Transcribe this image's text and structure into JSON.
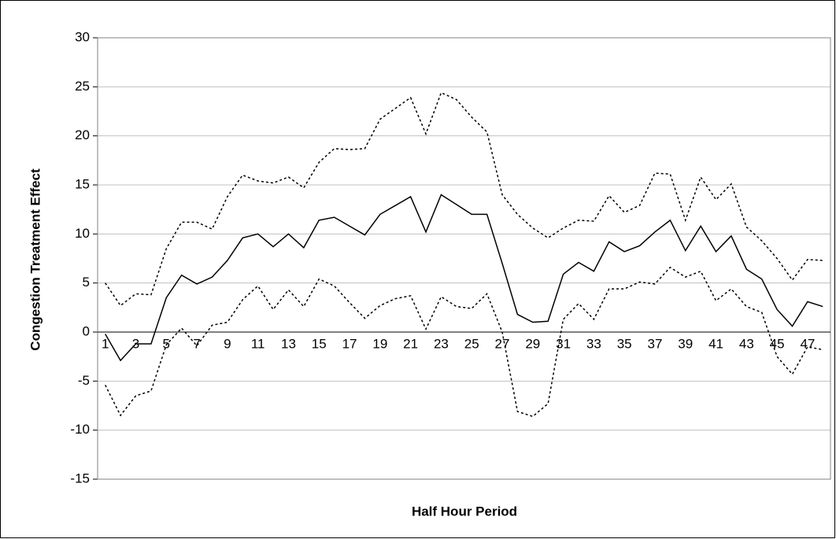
{
  "chart_data": {
    "type": "line",
    "x_label": "Half Hour Period",
    "y_label": "Congestion Treatment Effect",
    "categories": [
      "1",
      null,
      "3",
      null,
      "5",
      null,
      "7",
      null,
      "9",
      null,
      "11",
      null,
      "13",
      null,
      "15",
      null,
      "17",
      null,
      "19",
      null,
      "21",
      null,
      "23",
      null,
      "25",
      null,
      "27",
      null,
      "29",
      null,
      "31",
      null,
      "33",
      null,
      "35",
      null,
      "37",
      null,
      "39",
      null,
      "41",
      null,
      "43",
      null,
      "45",
      null,
      "47",
      null
    ],
    "series": [
      {
        "color": "#000000",
        "dash": "solid",
        "values": [
          -0.2,
          -2.9,
          -1.2,
          -1.2,
          3.5,
          5.8,
          4.9,
          5.6,
          7.3,
          9.6,
          10.0,
          8.7,
          10.0,
          8.6,
          11.4,
          11.7,
          10.8,
          9.9,
          12.0,
          12.9,
          13.8,
          10.2,
          14.0,
          13.0,
          12.0,
          12.0,
          7.0,
          1.8,
          1.0,
          1.1,
          5.9,
          7.1,
          6.2,
          9.2,
          8.2,
          8.8,
          10.2,
          11.4,
          8.3,
          10.8,
          8.2,
          9.8,
          6.4,
          5.4,
          2.3,
          0.6,
          3.1,
          2.6
        ]
      },
      {
        "color": "#000000",
        "dash": "dotted",
        "values": [
          5.0,
          2.7,
          3.9,
          3.8,
          8.5,
          11.2,
          11.2,
          10.5,
          13.8,
          16.0,
          15.4,
          15.2,
          15.8,
          14.7,
          17.3,
          18.7,
          18.6,
          18.7,
          21.7,
          22.8,
          23.9,
          20.2,
          24.4,
          23.7,
          21.9,
          20.4,
          14.0,
          12.0,
          10.6,
          9.6,
          10.6,
          11.4,
          11.3,
          13.9,
          12.2,
          12.9,
          16.2,
          16.1,
          11.4,
          15.8,
          13.5,
          15.1,
          10.7,
          9.3,
          7.5,
          5.3,
          7.4,
          7.3
        ]
      },
      {
        "color": "#000000",
        "dash": "dotted",
        "values": [
          -5.4,
          -8.5,
          -6.5,
          -6.0,
          -1.3,
          0.4,
          -1.4,
          0.7,
          1.0,
          3.3,
          4.7,
          2.3,
          4.3,
          2.6,
          5.4,
          4.7,
          3.0,
          1.4,
          2.7,
          3.4,
          3.7,
          0.3,
          3.6,
          2.6,
          2.4,
          3.9,
          0.0,
          -8.1,
          -8.6,
          -7.3,
          1.3,
          2.9,
          1.3,
          4.4,
          4.4,
          5.1,
          4.9,
          6.6,
          5.6,
          6.2,
          3.2,
          4.4,
          2.6,
          2.0,
          -2.5,
          -4.3,
          -1.5,
          -1.8
        ]
      }
    ],
    "ylim": [
      -15,
      30
    ],
    "yticks": [
      -15,
      -10,
      -5,
      0,
      5,
      10,
      15,
      20,
      25,
      30
    ],
    "grid": true
  }
}
